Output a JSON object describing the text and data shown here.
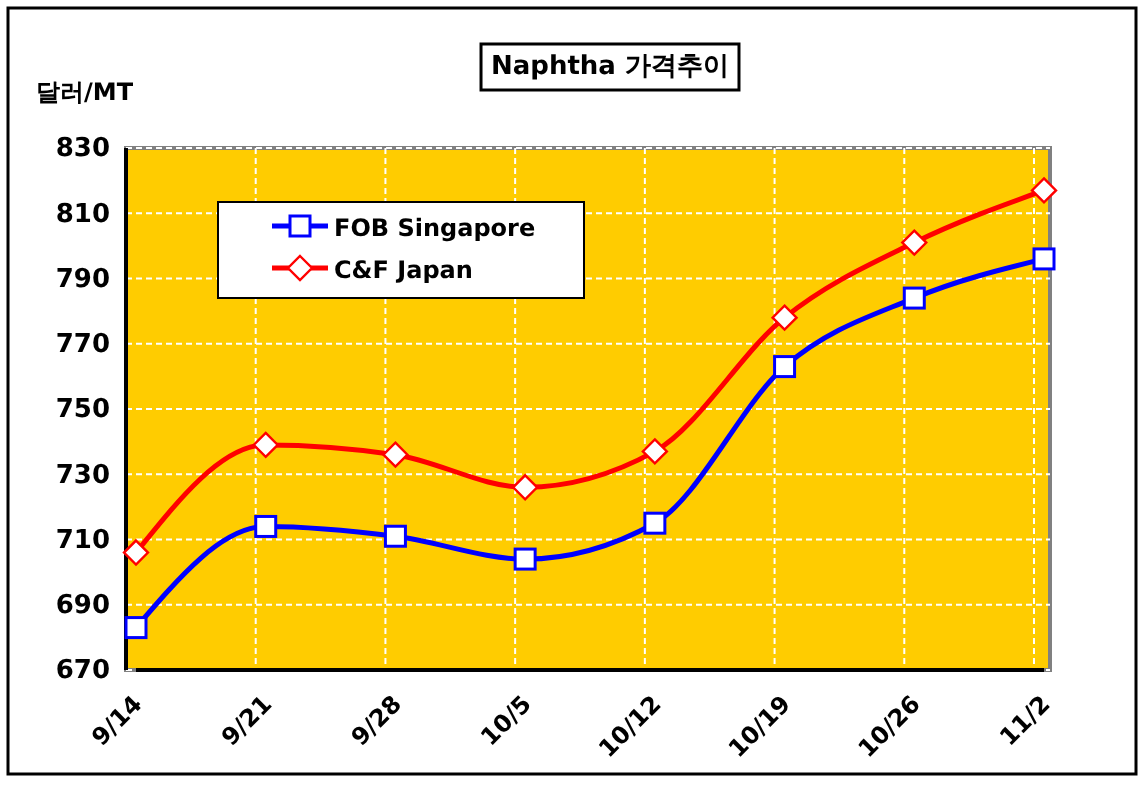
{
  "chart_data": {
    "type": "line",
    "title": "Naphtha 가격추이",
    "ylabel": "달러/MT",
    "categories": [
      "9/14",
      "9/21",
      "9/28",
      "10/5",
      "10/12",
      "10/19",
      "10/26",
      "11/2"
    ],
    "series": [
      {
        "name": "FOB Singapore",
        "color": "#0000ff",
        "marker": "square",
        "values": [
          683,
          714,
          711,
          704,
          715,
          763,
          784,
          796
        ]
      },
      {
        "name": "C&F Japan",
        "color": "#ff0000",
        "marker": "diamond",
        "values": [
          706,
          739,
          736,
          726,
          737,
          778,
          801,
          817
        ]
      }
    ],
    "ylim": [
      670,
      830
    ],
    "yticks": [
      670,
      690,
      710,
      730,
      750,
      770,
      790,
      810,
      830
    ],
    "grid": true,
    "legend": "top left"
  }
}
